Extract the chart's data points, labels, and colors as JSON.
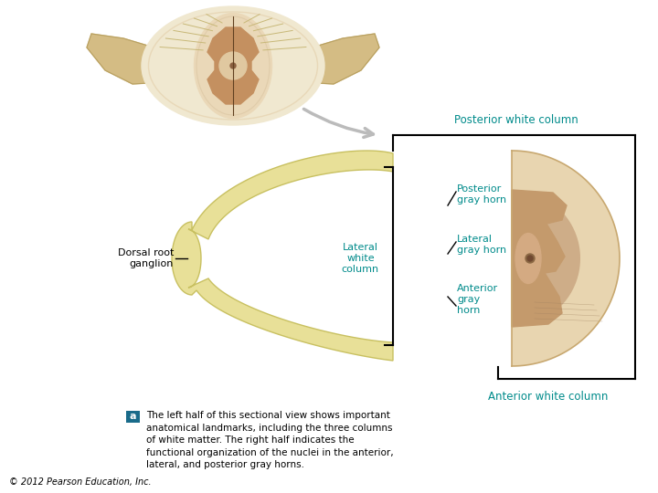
{
  "background_color": "#ffffff",
  "label_color": "#008B8B",
  "beige_outer": "#E8D5B0",
  "beige_mid": "#DBBF96",
  "gray_matter_color": "#C4956A",
  "gray_matter_light": "#D4A878",
  "yellow_nerve": "#E8E098",
  "yellow_nerve_outline": "#C8C060",
  "yellow_dark": "#D0C070",
  "title": "Posterior white column",
  "ant_title": "Anterior white column",
  "label_posterior_gray": "Posterior\ngray horn",
  "label_lateral_white": "Lateral\nwhite\ncolumn",
  "label_lateral_gray": "Lateral\ngray horn",
  "label_anterior_gray": "Anterior\ngray\nhorn",
  "label_dorsal_root": "Dorsal root\nganglion",
  "caption_a": "a",
  "caption_text": "The left half of this sectional view shows important\nanatomical landmarks, including the three columns\nof white matter. The right half indicates the\nfunctional organization of the nuclei in the anterior,\nlateral, and posterior gray horns.",
  "copyright": "© 2012 Pearson Education, Inc.",
  "figsize": [
    7.2,
    5.4
  ],
  "dpi": 100
}
